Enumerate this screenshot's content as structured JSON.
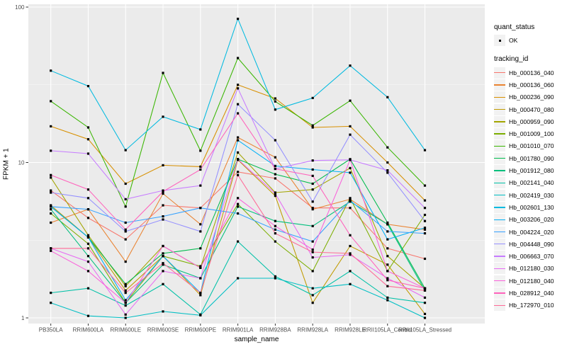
{
  "axes": {
    "x_label": "sample_name",
    "y_label": "FPKM + 1"
  },
  "legend": {
    "quant_status_title": "quant_status",
    "quant_status_items": [
      "OK"
    ],
    "tracking_title": "tracking_id"
  },
  "chart_data": {
    "type": "line",
    "x_type": "categorical",
    "yscale": "log10",
    "ylim": [
      0.92,
      104
    ],
    "y_ticks": [
      1,
      10,
      100
    ],
    "y_minor_gridlines": [
      3.162,
      31.62
    ],
    "grid": true,
    "legend_position": "right",
    "marker": "black-square",
    "panel_bg": "#EBEBEB",
    "gridline_color": "#FFFFFF",
    "tick_label_color": "#4D4D4D",
    "categories": [
      "PB350LA",
      "RRIM600LA",
      "RRIM600LE",
      "RRIM600SE",
      "RRIM600PE",
      "RRIM901LA",
      "RRIM928BA",
      "RRIM928LA",
      "RRIM928LE",
      "RRII105LA_Control",
      "RRII105LA_Stressed"
    ],
    "series": [
      {
        "name": "Hb_000136_040",
        "color": "#F8766D",
        "values": [
          6.6,
          4.4,
          3.2,
          5.3,
          5.1,
          8.7,
          7.9,
          5.1,
          5.1,
          2.8,
          2.4
        ]
      },
      {
        "name": "Hb_000136_060",
        "color": "#EA8331",
        "values": [
          4.1,
          5.0,
          2.3,
          6.3,
          4.0,
          14.5,
          10.8,
          5.0,
          5.8,
          4.0,
          3.7
        ]
      },
      {
        "name": "Hb_000236_090",
        "color": "#D89000",
        "values": [
          17.1,
          14.1,
          7.3,
          9.6,
          9.4,
          31.6,
          25.8,
          16.8,
          17.1,
          10.0,
          5.7
        ]
      },
      {
        "name": "Hb_000470_080",
        "color": "#C09B00",
        "values": [
          5.3,
          3.3,
          1.5,
          2.5,
          1.4,
          10.4,
          6.1,
          1.25,
          2.9,
          2.2,
          1.06
        ]
      },
      {
        "name": "Hb_000959_090",
        "color": "#A3A500",
        "values": [
          8.0,
          3.4,
          1.6,
          2.9,
          2.1,
          11.6,
          6.4,
          6.7,
          9.2,
          2.5,
          1.55
        ]
      },
      {
        "name": "Hb_001009_100",
        "color": "#7CAE00",
        "values": [
          4.7,
          3.0,
          1.25,
          2.5,
          2.15,
          5.4,
          3.1,
          2.0,
          5.9,
          2.0,
          4.6
        ]
      },
      {
        "name": "Hb_001010_070",
        "color": "#39B600",
        "values": [
          24.8,
          16.8,
          5.2,
          37.7,
          11.9,
          47.0,
          24.7,
          17.3,
          25.0,
          12.5,
          7.1
        ]
      },
      {
        "name": "Hb_001780_090",
        "color": "#00BB4E",
        "values": [
          5.2,
          3.3,
          1.65,
          2.6,
          2.8,
          10.5,
          8.4,
          7.3,
          10.5,
          4.1,
          1.55
        ]
      },
      {
        "name": "Hb_001912_080",
        "color": "#00BF7D",
        "values": [
          5.0,
          2.5,
          1.25,
          2.2,
          1.8,
          5.2,
          4.2,
          3.9,
          5.6,
          4.0,
          1.5
        ]
      },
      {
        "name": "Hb_002141_040",
        "color": "#00C1A7",
        "values": [
          1.45,
          1.55,
          1.2,
          1.65,
          1.05,
          3.1,
          1.85,
          1.4,
          2.0,
          1.35,
          1.25
        ]
      },
      {
        "name": "Hb_002419_030",
        "color": "#00BFC4",
        "values": [
          1.25,
          1.03,
          1.0,
          1.1,
          1.04,
          1.8,
          1.8,
          1.55,
          1.65,
          1.3,
          1.0
        ]
      },
      {
        "name": "Hb_002601_130",
        "color": "#00BAE0",
        "values": [
          39.0,
          31.0,
          12.0,
          19.7,
          16.3,
          84.0,
          21.9,
          26.0,
          42.0,
          26.3,
          12.0
        ]
      },
      {
        "name": "Hb_003206_020",
        "color": "#00B0F6",
        "values": [
          5.2,
          3.3,
          1.3,
          2.5,
          1.45,
          13.9,
          9.5,
          9.0,
          8.6,
          3.2,
          3.8
        ]
      },
      {
        "name": "Hb_004224_020",
        "color": "#35A2FF",
        "values": [
          5.2,
          5.0,
          4.1,
          4.5,
          5.1,
          4.7,
          3.7,
          3.1,
          5.7,
          3.6,
          3.5
        ]
      },
      {
        "name": "Hb_004448_090",
        "color": "#9590FF",
        "values": [
          6.4,
          5.9,
          3.6,
          4.3,
          3.6,
          23.7,
          13.9,
          5.6,
          15.1,
          8.6,
          4.2
        ]
      },
      {
        "name": "Hb_006663_070",
        "color": "#C77CFF",
        "values": [
          11.9,
          11.4,
          5.8,
          6.6,
          7.1,
          30.0,
          9.1,
          10.3,
          10.4,
          8.9,
          5.1
        ]
      },
      {
        "name": "Hb_012180_030",
        "color": "#E76BF3",
        "values": [
          2.8,
          2.3,
          1.05,
          2.0,
          1.8,
          10.5,
          6.3,
          2.45,
          2.55,
          1.8,
          1.35
        ]
      },
      {
        "name": "Hb_012180_040",
        "color": "#FA62DB",
        "values": [
          2.7,
          2.0,
          1.25,
          2.9,
          2.1,
          5.9,
          3.9,
          2.75,
          10.4,
          2.0,
          1.55
        ]
      },
      {
        "name": "Hb_028912_040",
        "color": "#FF62BC",
        "values": [
          8.3,
          6.7,
          3.7,
          6.5,
          9.0,
          20.7,
          9.1,
          8.2,
          3.4,
          1.75,
          1.55
        ]
      },
      {
        "name": "Hb_172970_010",
        "color": "#FF6A98",
        "values": [
          2.8,
          2.8,
          1.45,
          2.25,
          1.45,
          8.3,
          3.5,
          2.65,
          2.6,
          1.6,
          1.5
        ]
      }
    ]
  }
}
